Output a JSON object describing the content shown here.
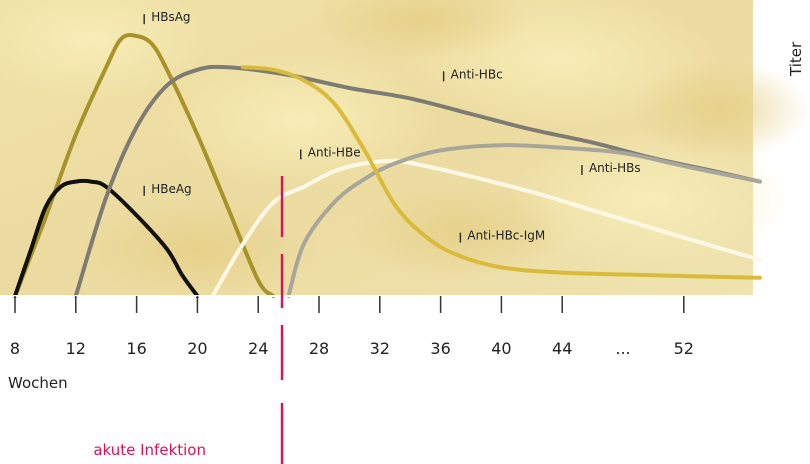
{
  "chart_data": {
    "type": "line",
    "title": "",
    "xlabel": "Wochen",
    "ylabel": "Titer",
    "x_ticks": [
      "8",
      "12",
      "16",
      "20",
      "24",
      "28",
      "32",
      "36",
      "40",
      "44",
      "...",
      "52"
    ],
    "marker": {
      "label": "akute Infektion",
      "x": 25,
      "color": "#d4145a"
    },
    "series": [
      {
        "name": "HBsAg",
        "color": "#a8922a",
        "points": [
          [
            8,
            0
          ],
          [
            10,
            0.3
          ],
          [
            12,
            0.62
          ],
          [
            14,
            0.88
          ],
          [
            15,
            0.99
          ],
          [
            16,
            1.0
          ],
          [
            17,
            0.97
          ],
          [
            18,
            0.87
          ],
          [
            20,
            0.62
          ],
          [
            22,
            0.34
          ],
          [
            24,
            0.06
          ],
          [
            25,
            0
          ]
        ]
      },
      {
        "name": "HBeAg",
        "color": "#111111",
        "points": [
          [
            8,
            0
          ],
          [
            9,
            0.17
          ],
          [
            10,
            0.34
          ],
          [
            11,
            0.42
          ],
          [
            12,
            0.44
          ],
          [
            13,
            0.44
          ],
          [
            14,
            0.42
          ],
          [
            16,
            0.31
          ],
          [
            18,
            0.18
          ],
          [
            19,
            0.08
          ],
          [
            20,
            0
          ]
        ]
      },
      {
        "name": "Anti-HBc",
        "color": "#7d7b72",
        "points": [
          [
            12,
            0
          ],
          [
            14,
            0.38
          ],
          [
            16,
            0.65
          ],
          [
            18,
            0.81
          ],
          [
            20,
            0.87
          ],
          [
            22,
            0.88
          ],
          [
            26,
            0.85
          ],
          [
            30,
            0.8
          ],
          [
            34,
            0.76
          ],
          [
            38,
            0.7
          ],
          [
            42,
            0.64
          ],
          [
            46,
            0.59
          ],
          [
            50,
            0.53
          ],
          [
            54,
            0.48
          ],
          [
            57,
            0.44
          ]
        ]
      },
      {
        "name": "Anti-HBe",
        "color": "#fff8e6",
        "points": [
          [
            21,
            0
          ],
          [
            23,
            0.2
          ],
          [
            25,
            0.36
          ],
          [
            27,
            0.42
          ],
          [
            29,
            0.48
          ],
          [
            31,
            0.51
          ],
          [
            33,
            0.52
          ],
          [
            35,
            0.5
          ],
          [
            38,
            0.46
          ],
          [
            42,
            0.4
          ],
          [
            46,
            0.33
          ],
          [
            50,
            0.26
          ],
          [
            54,
            0.19
          ],
          [
            57,
            0.14
          ]
        ]
      },
      {
        "name": "Anti-HBs",
        "color": "#a8a59b",
        "points": [
          [
            26,
            0
          ],
          [
            27,
            0.2
          ],
          [
            29,
            0.36
          ],
          [
            31,
            0.45
          ],
          [
            33,
            0.51
          ],
          [
            36,
            0.56
          ],
          [
            40,
            0.58
          ],
          [
            44,
            0.57
          ],
          [
            48,
            0.55
          ],
          [
            52,
            0.5
          ],
          [
            57,
            0.44
          ]
        ]
      },
      {
        "name": "Anti-HBc-IgM",
        "color": "#d8bb3a",
        "points": [
          [
            23,
            0.88
          ],
          [
            25,
            0.87
          ],
          [
            27,
            0.83
          ],
          [
            29,
            0.74
          ],
          [
            31,
            0.56
          ],
          [
            33,
            0.35
          ],
          [
            35,
            0.23
          ],
          [
            37,
            0.16
          ],
          [
            40,
            0.11
          ],
          [
            44,
            0.09
          ],
          [
            50,
            0.08
          ],
          [
            57,
            0.07
          ]
        ]
      }
    ],
    "labels": [
      {
        "text": "HBsAg",
        "x": 16.5,
        "y": 1.08
      },
      {
        "text": "Anti-HBc",
        "x": 36.2,
        "y": 0.86
      },
      {
        "text": "Anti-HBe",
        "x": 26.8,
        "y": 0.56
      },
      {
        "text": "Anti-HBs",
        "x": 45.3,
        "y": 0.5
      },
      {
        "text": "HBeAg",
        "x": 16.5,
        "y": 0.42
      },
      {
        "text": "Anti-HBc-IgM",
        "x": 37.3,
        "y": 0.24
      }
    ]
  }
}
